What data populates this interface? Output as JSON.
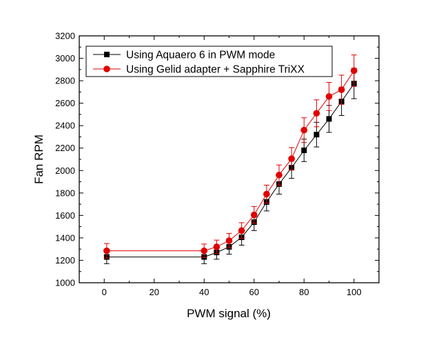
{
  "chart_data": {
    "type": "line",
    "xlabel": "PWM signal (%)",
    "ylabel": "Fan RPM",
    "xlim": [
      -10,
      110
    ],
    "ylim": [
      1000,
      3200
    ],
    "x_ticks": [
      0,
      20,
      40,
      60,
      80,
      100
    ],
    "y_ticks": [
      1000,
      1200,
      1400,
      1600,
      1800,
      2000,
      2200,
      2400,
      2600,
      2800,
      3000,
      3200
    ],
    "grid": false,
    "legend_position": "top-left",
    "x": [
      1,
      40,
      45,
      50,
      55,
      60,
      65,
      70,
      75,
      80,
      85,
      90,
      95,
      100
    ],
    "series": [
      {
        "name": "Using Aquaero 6 in PWM mode",
        "color": "#000000",
        "marker": "square",
        "values": [
          1230,
          1230,
          1270,
          1320,
          1405,
          1540,
          1720,
          1880,
          2025,
          2180,
          2320,
          2460,
          2615,
          2775
        ],
        "error": [
          60,
          60,
          60,
          65,
          70,
          75,
          80,
          90,
          95,
          100,
          110,
          120,
          125,
          135
        ]
      },
      {
        "name": "Using Gelid adapter + Sapphire TriXX",
        "color": "#e00000",
        "marker": "circle",
        "values": [
          1285,
          1285,
          1320,
          1375,
          1465,
          1605,
          1790,
          1960,
          2105,
          2360,
          2510,
          2660,
          2720,
          2890
        ],
        "error": [
          65,
          60,
          60,
          65,
          70,
          75,
          80,
          90,
          100,
          110,
          120,
          125,
          130,
          140
        ]
      }
    ]
  }
}
